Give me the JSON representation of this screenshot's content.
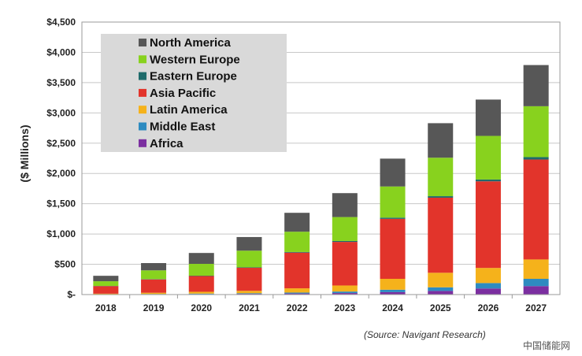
{
  "chart_data": {
    "type": "bar",
    "stacked": true,
    "title": "",
    "xlabel": "",
    "ylabel": "($ Millions)",
    "ylim": [
      0,
      4500
    ],
    "yticks": [
      0,
      500,
      1000,
      1500,
      2000,
      2500,
      3000,
      3500,
      4000,
      4500
    ],
    "ytick_labels": [
      "$-",
      "$500",
      "$1,000",
      "$1,500",
      "$2,000",
      "$2,500",
      "$3,000",
      "$3,500",
      "$4,000",
      "$4,500"
    ],
    "categories": [
      "2018",
      "2019",
      "2020",
      "2021",
      "2022",
      "2023",
      "2024",
      "2025",
      "2026",
      "2027"
    ],
    "grid": true,
    "legend_position": "top-left",
    "series": [
      {
        "name": "Africa",
        "color": "#7b2fa0",
        "values": [
          3,
          5,
          8,
          12,
          18,
          25,
          40,
          60,
          100,
          140
        ]
      },
      {
        "name": "Middle East",
        "color": "#2e8bc0",
        "values": [
          2,
          5,
          8,
          10,
          15,
          25,
          40,
          60,
          90,
          120
        ]
      },
      {
        "name": "Latin America",
        "color": "#f5b21b",
        "values": [
          10,
          20,
          30,
          40,
          70,
          100,
          180,
          240,
          250,
          320
        ]
      },
      {
        "name": "Asia Pacific",
        "color": "#e2342b",
        "values": [
          125,
          220,
          260,
          380,
          590,
          720,
          990,
          1240,
          1430,
          1650
        ]
      },
      {
        "name": "Eastern Europe",
        "color": "#1f6b6b",
        "values": [
          3,
          5,
          6,
          8,
          10,
          15,
          20,
          25,
          30,
          40
        ]
      },
      {
        "name": "Western Europe",
        "color": "#88d21e",
        "values": [
          77,
          145,
          195,
          275,
          335,
          395,
          515,
          635,
          720,
          840
        ]
      },
      {
        "name": "North America",
        "color": "#575757",
        "values": [
          90,
          120,
          180,
          225,
          312,
          395,
          460,
          570,
          600,
          680
        ]
      }
    ],
    "legend_order": [
      "North America",
      "Western Europe",
      "Eastern Europe",
      "Asia Pacific",
      "Latin America",
      "Middle East",
      "Africa"
    ]
  },
  "source_text": "(Source: Navigant Research)",
  "watermark_text": "中国储能网"
}
